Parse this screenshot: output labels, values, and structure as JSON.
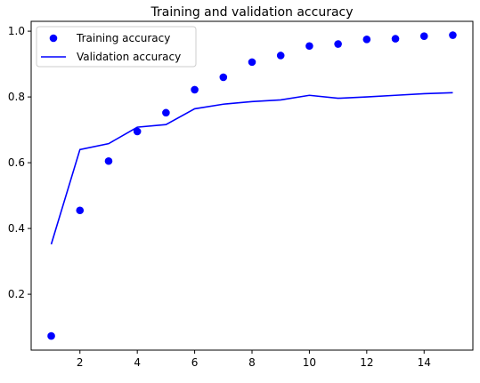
{
  "chart_data": {
    "type": "scatter+line",
    "title": "Training and validation accuracy",
    "xlabel": "",
    "ylabel": "",
    "xlim": [
      0.3,
      15.7
    ],
    "ylim": [
      0.03,
      1.03
    ],
    "xticks": [
      2,
      4,
      6,
      8,
      10,
      12,
      14
    ],
    "yticks": [
      0.2,
      0.4,
      0.6,
      0.8,
      1.0
    ],
    "ytick_labels": [
      "0.2",
      "0.4",
      "0.6",
      "0.8",
      "1.0"
    ],
    "grid": false,
    "legend_position": "upper-left",
    "series": [
      {
        "name": "Training accuracy",
        "kind": "scatter",
        "color": "#0000ff",
        "x": [
          1,
          2,
          3,
          4,
          5,
          6,
          7,
          8,
          9,
          10,
          11,
          12,
          13,
          14,
          15
        ],
        "y": [
          0.073,
          0.455,
          0.605,
          0.695,
          0.752,
          0.822,
          0.86,
          0.906,
          0.926,
          0.955,
          0.961,
          0.975,
          0.977,
          0.985,
          0.988
        ]
      },
      {
        "name": "Validation accuracy",
        "kind": "line",
        "color": "#0000ff",
        "x": [
          1,
          2,
          3,
          4,
          5,
          6,
          7,
          8,
          9,
          10,
          11,
          12,
          13,
          14,
          15
        ],
        "y": [
          0.352,
          0.64,
          0.658,
          0.708,
          0.716,
          0.764,
          0.778,
          0.786,
          0.791,
          0.805,
          0.796,
          0.8,
          0.805,
          0.81,
          0.813
        ]
      }
    ]
  }
}
